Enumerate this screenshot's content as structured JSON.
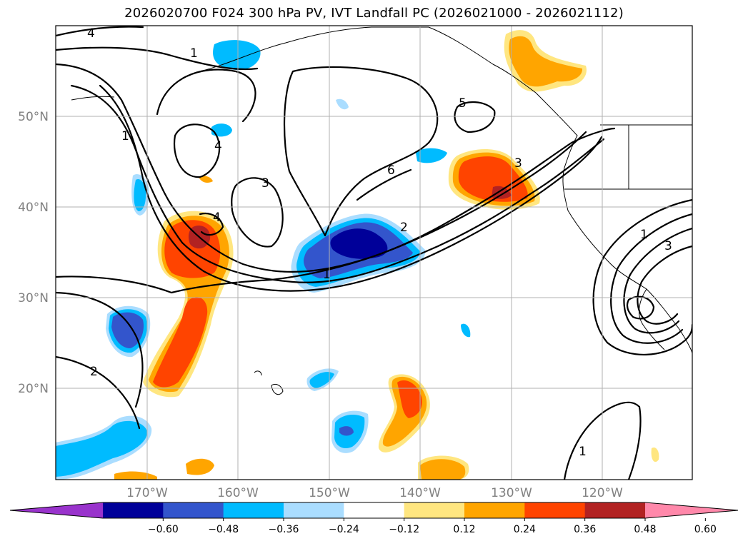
{
  "title": "2026020700 F024 300 hPa PV, IVT Landfall PC (2026021000 - 2026021112)",
  "lat_labels": [
    "50°N",
    "40°N",
    "30°N",
    "20°N"
  ],
  "lon_labels": [
    "170°W",
    "160°W",
    "150°W",
    "140°W",
    "130°W",
    "120°W"
  ],
  "colorbar": {
    "labels": [
      "−0.60",
      "−0.48",
      "−0.36",
      "−0.24",
      "−0.12",
      "0.12",
      "0.24",
      "0.36",
      "0.48",
      "0.60"
    ],
    "colors": [
      "#9933cc",
      "#000099",
      "#3355cc",
      "#00bbff",
      "#aaddff",
      "#ffffff",
      "#ffe680",
      "#ffa500",
      "#ff4400",
      "#b22222",
      "#ff88aa"
    ]
  },
  "contour_labels": [
    "4",
    "1",
    "1",
    "4",
    "3",
    "4",
    "6",
    "5",
    "3",
    "2",
    "1",
    "2",
    "1",
    "3",
    "1"
  ]
}
